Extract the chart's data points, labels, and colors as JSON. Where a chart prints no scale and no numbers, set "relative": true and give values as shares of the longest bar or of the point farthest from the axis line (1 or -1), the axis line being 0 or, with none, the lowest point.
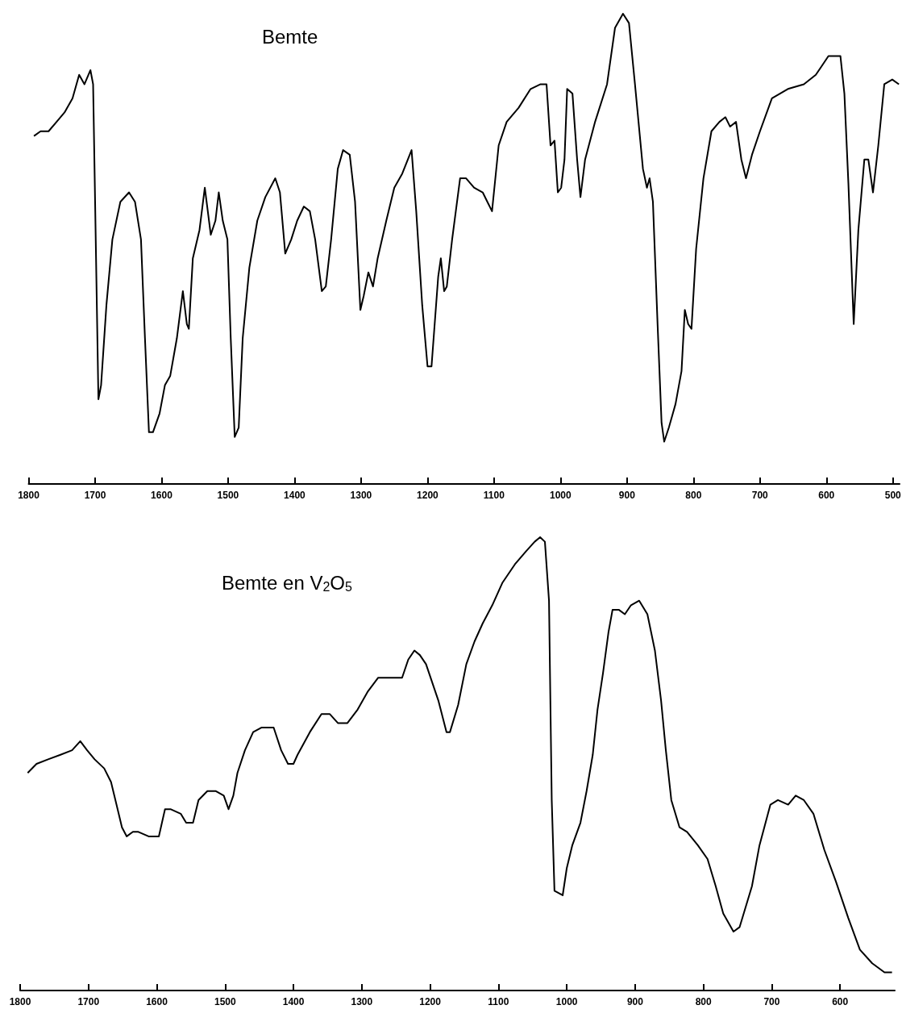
{
  "chart_data": [
    {
      "type": "line",
      "title": "Bemte",
      "relative": true,
      "xlim": [
        1800,
        490
      ],
      "xticks": [
        1800,
        1700,
        1600,
        1500,
        1400,
        1300,
        1200,
        1100,
        1000,
        900,
        800,
        700,
        600,
        500
      ],
      "series": [
        {
          "color": "#000000",
          "x": [
            1792,
            1782,
            1770,
            1758,
            1746,
            1734,
            1724,
            1716,
            1707,
            1703,
            1700,
            1695,
            1691,
            1683,
            1674,
            1662,
            1649,
            1640,
            1631,
            1625,
            1619,
            1613,
            1603,
            1595,
            1587,
            1577,
            1568,
            1562,
            1559,
            1553,
            1543,
            1535,
            1526,
            1519,
            1514,
            1508,
            1501,
            1496,
            1490,
            1484,
            1478,
            1468,
            1456,
            1444,
            1429,
            1422,
            1414,
            1405,
            1396,
            1386,
            1377,
            1369,
            1359,
            1353,
            1345,
            1335,
            1327,
            1317,
            1309,
            1301,
            1296,
            1289,
            1282,
            1275,
            1262,
            1250,
            1238,
            1224,
            1217,
            1208,
            1200,
            1194,
            1184,
            1180,
            1175,
            1171,
            1163,
            1151,
            1142,
            1130,
            1117,
            1110,
            1103,
            1093,
            1081,
            1063,
            1045,
            1030,
            1021,
            1015,
            1009,
            1004,
            999,
            994,
            990,
            982,
            975,
            970,
            963,
            948,
            930,
            918,
            906,
            897,
            888,
            876,
            870,
            866,
            861,
            854,
            848,
            844,
            837,
            827,
            818,
            813,
            808,
            803,
            796,
            785,
            773,
            761,
            752,
            745,
            736,
            728,
            721,
            712,
            700,
            682,
            658,
            634,
            616,
            597,
            579,
            573,
            567,
            559,
            552,
            543,
            537,
            530,
            522,
            513,
            501,
            491
          ],
          "values": [
            0.74,
            0.75,
            0.75,
            0.77,
            0.79,
            0.82,
            0.87,
            0.85,
            0.88,
            0.85,
            0.6,
            0.18,
            0.21,
            0.38,
            0.52,
            0.6,
            0.62,
            0.6,
            0.52,
            0.31,
            0.11,
            0.11,
            0.15,
            0.21,
            0.23,
            0.31,
            0.41,
            0.34,
            0.33,
            0.48,
            0.54,
            0.63,
            0.53,
            0.56,
            0.62,
            0.56,
            0.52,
            0.31,
            0.1,
            0.12,
            0.31,
            0.46,
            0.56,
            0.61,
            0.65,
            0.62,
            0.49,
            0.52,
            0.56,
            0.59,
            0.58,
            0.52,
            0.41,
            0.42,
            0.52,
            0.67,
            0.71,
            0.7,
            0.6,
            0.37,
            0.4,
            0.45,
            0.42,
            0.48,
            0.56,
            0.63,
            0.66,
            0.71,
            0.58,
            0.38,
            0.25,
            0.25,
            0.44,
            0.48,
            0.41,
            0.42,
            0.52,
            0.65,
            0.65,
            0.63,
            0.62,
            0.6,
            0.58,
            0.72,
            0.77,
            0.8,
            0.84,
            0.85,
            0.85,
            0.72,
            0.73,
            0.62,
            0.63,
            0.69,
            0.84,
            0.83,
            0.69,
            0.61,
            0.69,
            0.77,
            0.85,
            0.97,
            1.0,
            0.98,
            0.85,
            0.67,
            0.63,
            0.65,
            0.6,
            0.34,
            0.13,
            0.09,
            0.12,
            0.17,
            0.24,
            0.37,
            0.34,
            0.33,
            0.5,
            0.65,
            0.75,
            0.77,
            0.78,
            0.76,
            0.77,
            0.69,
            0.65,
            0.7,
            0.75,
            0.82,
            0.84,
            0.85,
            0.87,
            0.91,
            0.91,
            0.83,
            0.64,
            0.34,
            0.54,
            0.69,
            0.69,
            0.62,
            0.72,
            0.85,
            0.86,
            0.85
          ]
        }
      ]
    },
    {
      "type": "line",
      "title": "Bemte en V$_{2}$O$_{5}$",
      "relative": true,
      "xlim": [
        1800,
        520
      ],
      "xticks": [
        1800,
        1700,
        1600,
        1500,
        1400,
        1300,
        1200,
        1100,
        1000,
        900,
        800,
        700,
        600
      ],
      "series": [
        {
          "color": "#000000",
          "x": [
            1789,
            1776,
            1759,
            1741,
            1724,
            1712,
            1702,
            1691,
            1677,
            1667,
            1659,
            1651,
            1644,
            1635,
            1627,
            1612,
            1597,
            1588,
            1580,
            1565,
            1557,
            1547,
            1539,
            1526,
            1514,
            1502,
            1495,
            1488,
            1482,
            1471,
            1459,
            1447,
            1429,
            1418,
            1408,
            1400,
            1394,
            1376,
            1359,
            1347,
            1335,
            1321,
            1306,
            1291,
            1276,
            1262,
            1241,
            1232,
            1223,
            1215,
            1206,
            1188,
            1176,
            1171,
            1159,
            1147,
            1135,
            1123,
            1109,
            1094,
            1076,
            1059,
            1047,
            1039,
            1032,
            1026,
            1022,
            1018,
            1006,
            1000,
            992,
            980,
            971,
            962,
            955,
            947,
            939,
            933,
            924,
            915,
            906,
            894,
            882,
            871,
            862,
            855,
            847,
            835,
            824,
            808,
            794,
            782,
            771,
            756,
            747,
            729,
            718,
            702,
            691,
            676,
            665,
            653,
            639,
            623,
            606,
            588,
            571,
            553,
            535,
            524
          ],
          "values": [
            0.48,
            0.5,
            0.51,
            0.52,
            0.53,
            0.55,
            0.53,
            0.51,
            0.49,
            0.46,
            0.41,
            0.36,
            0.34,
            0.35,
            0.35,
            0.34,
            0.34,
            0.4,
            0.4,
            0.39,
            0.37,
            0.37,
            0.42,
            0.44,
            0.44,
            0.43,
            0.4,
            0.43,
            0.48,
            0.53,
            0.57,
            0.58,
            0.58,
            0.53,
            0.5,
            0.5,
            0.52,
            0.57,
            0.61,
            0.61,
            0.59,
            0.59,
            0.62,
            0.66,
            0.69,
            0.69,
            0.69,
            0.73,
            0.75,
            0.74,
            0.72,
            0.64,
            0.57,
            0.57,
            0.63,
            0.72,
            0.77,
            0.81,
            0.85,
            0.9,
            0.94,
            0.97,
            0.99,
            1.0,
            0.99,
            0.86,
            0.42,
            0.22,
            0.21,
            0.27,
            0.32,
            0.37,
            0.44,
            0.52,
            0.62,
            0.7,
            0.79,
            0.84,
            0.84,
            0.83,
            0.85,
            0.86,
            0.83,
            0.75,
            0.64,
            0.53,
            0.42,
            0.36,
            0.35,
            0.32,
            0.29,
            0.23,
            0.17,
            0.13,
            0.14,
            0.23,
            0.32,
            0.41,
            0.42,
            0.41,
            0.43,
            0.42,
            0.39,
            0.31,
            0.24,
            0.16,
            0.09,
            0.06,
            0.04,
            0.04
          ]
        }
      ]
    }
  ]
}
